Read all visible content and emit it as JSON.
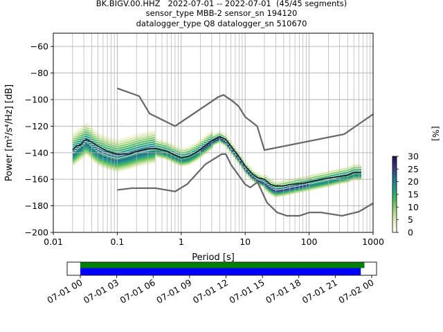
{
  "header": {
    "line1": "BK.BIGV.00.HHZ   2022-07-01 -- 2022-07-01  (45/45 segments)",
    "line2": "sensor_type MBB-2 sensor_sn 194120",
    "line3": "datalogger_type Q8 datalogger_sn 510670"
  },
  "chart_data": [
    {
      "type": "heatmap",
      "title": "BK.BIGV.00.HHZ   2022-07-01 -- 2022-07-01  (45/45 segments)",
      "subtitle": [
        "sensor_type MBB-2 sensor_sn 194120",
        "datalogger_type Q8 datalogger_sn 510670"
      ],
      "xlabel": "Period [s]",
      "ylabel": "Power [m²/s⁴/Hz] [dB]",
      "xscale": "log",
      "xlim": [
        0.01,
        1000
      ],
      "ylim": [
        -200,
        -50
      ],
      "xticks": [
        0.01,
        0.1,
        1,
        10,
        100,
        1000
      ],
      "xtick_labels": [
        "0.01",
        "0.1",
        "1",
        "10",
        "100",
        "1000"
      ],
      "yticks": [
        -60,
        -80,
        -100,
        -120,
        -140,
        -160,
        -180,
        -200
      ],
      "ytick_labels": [
        "−60",
        "−80",
        "−100",
        "−120",
        "−140",
        "−160",
        "−180",
        "−200"
      ],
      "grid": true,
      "colorbar": {
        "label": "[%]",
        "min": 0,
        "max": 30,
        "ticks": [
          0,
          5,
          10,
          15,
          20,
          25,
          30
        ],
        "tick_labels": [
          "0",
          "5",
          "10",
          "15",
          "20",
          "25",
          "30"
        ],
        "colormap": [
          "#ffffff",
          "#e6f0c0",
          "#a8d880",
          "#4dbb5f",
          "#1f9e89",
          "#2a6f8e",
          "#3b3a80",
          "#2b0a4e"
        ]
      },
      "mean_curve": {
        "color": "#000000",
        "points": [
          [
            0.02,
            -138
          ],
          [
            0.023,
            -135
          ],
          [
            0.027,
            -134
          ],
          [
            0.03,
            -131
          ],
          [
            0.033,
            -130
          ],
          [
            0.04,
            -132
          ],
          [
            0.05,
            -135
          ],
          [
            0.07,
            -139
          ],
          [
            0.1,
            -141
          ],
          [
            0.15,
            -141
          ],
          [
            0.2,
            -139
          ],
          [
            0.3,
            -137
          ],
          [
            0.4,
            -137
          ],
          [
            0.6,
            -139
          ],
          [
            0.8,
            -142
          ],
          [
            1,
            -144
          ],
          [
            1.3,
            -143
          ],
          [
            1.7,
            -140
          ],
          [
            2.2,
            -136
          ],
          [
            3,
            -131
          ],
          [
            4,
            -128
          ],
          [
            5,
            -130
          ],
          [
            6,
            -135
          ],
          [
            8,
            -143
          ],
          [
            10,
            -150
          ],
          [
            13,
            -156
          ],
          [
            16,
            -159
          ],
          [
            20,
            -160
          ],
          [
            25,
            -164
          ],
          [
            30,
            -165
          ],
          [
            40,
            -165
          ],
          [
            50,
            -164
          ],
          [
            80,
            -163
          ],
          [
            100,
            -162
          ],
          [
            200,
            -159
          ],
          [
            300,
            -158
          ],
          [
            400,
            -157
          ],
          [
            500,
            -155
          ],
          [
            650,
            -155
          ]
        ]
      },
      "distribution_curve": {
        "points": [
          [
            0.02,
            -141
          ],
          [
            0.025,
            -137
          ],
          [
            0.03,
            -134
          ],
          [
            0.033,
            -132
          ],
          [
            0.04,
            -136
          ],
          [
            0.05,
            -140
          ],
          [
            0.07,
            -143
          ],
          [
            0.1,
            -145
          ],
          [
            0.15,
            -143
          ],
          [
            0.2,
            -141
          ],
          [
            0.3,
            -139
          ],
          [
            0.4,
            -138
          ],
          [
            0.6,
            -140
          ],
          [
            0.8,
            -143
          ],
          [
            1,
            -145
          ],
          [
            1.3,
            -144
          ],
          [
            1.7,
            -141
          ],
          [
            2.2,
            -137
          ],
          [
            3,
            -132
          ],
          [
            4,
            -129
          ],
          [
            5,
            -132
          ],
          [
            6,
            -137
          ],
          [
            8,
            -145
          ],
          [
            10,
            -152
          ],
          [
            13,
            -158
          ],
          [
            16,
            -161
          ],
          [
            20,
            -163
          ],
          [
            25,
            -167
          ],
          [
            30,
            -169
          ],
          [
            40,
            -168
          ],
          [
            50,
            -167
          ],
          [
            80,
            -165
          ],
          [
            100,
            -164
          ],
          [
            200,
            -161
          ],
          [
            300,
            -159
          ],
          [
            400,
            -158
          ],
          [
            500,
            -156
          ],
          [
            650,
            -156
          ]
        ]
      },
      "noise_models": [
        {
          "name": "high_noise_model",
          "color": "#666666",
          "points": [
            [
              0.1,
              -91.5
            ],
            [
              0.22,
              -97.4
            ],
            [
              0.32,
              -110.5
            ],
            [
              0.8,
              -120
            ],
            [
              3.8,
              -98
            ],
            [
              4.6,
              -96.5
            ],
            [
              6.3,
              -101
            ],
            [
              7.9,
              -105
            ],
            [
              10,
              -113
            ],
            [
              15.4,
              -120
            ],
            [
              20,
              -138
            ],
            [
              354,
              -126
            ],
            [
              1000,
              -111
            ]
          ]
        },
        {
          "name": "low_noise_model",
          "color": "#666666",
          "points": [
            [
              0.1,
              -168
            ],
            [
              0.17,
              -166.7
            ],
            [
              0.4,
              -166.7
            ],
            [
              0.8,
              -169.2
            ],
            [
              1.24,
              -163.7
            ],
            [
              2.4,
              -148.6
            ],
            [
              4.3,
              -141.1
            ],
            [
              5,
              -141.1
            ],
            [
              6,
              -149
            ],
            [
              10,
              -163.8
            ],
            [
              12,
              -166.2
            ],
            [
              15.6,
              -162.1
            ],
            [
              21.9,
              -177.5
            ],
            [
              31.6,
              -185
            ],
            [
              45,
              -187.5
            ],
            [
              70,
              -187.5
            ],
            [
              101,
              -185
            ],
            [
              154,
              -185
            ],
            [
              328,
              -187.5
            ],
            [
              600,
              -184.4
            ],
            [
              1000,
              -178
            ]
          ]
        }
      ]
    },
    {
      "type": "bar",
      "role": "data_coverage",
      "xlabel": "",
      "ylabel": "",
      "time_range": [
        "07-01 00",
        "07-02 00"
      ],
      "xtick_labels": [
        "07-01 00",
        "07-01 03",
        "07-01 06",
        "07-01 09",
        "07-01 12",
        "07-01 15",
        "07-01 18",
        "07-01 21",
        "07-02 00"
      ],
      "series": [
        {
          "color": "#008000",
          "start_hours": 0,
          "end_hours": 23.4
        },
        {
          "color": "#0000ff",
          "start_hours": 0,
          "end_hours": 23.1
        }
      ]
    }
  ]
}
